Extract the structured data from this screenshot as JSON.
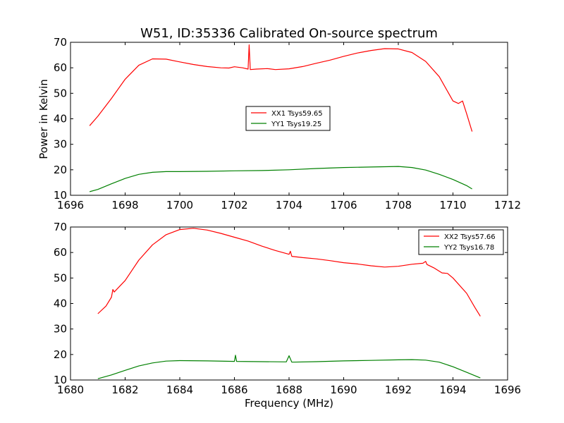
{
  "figure": {
    "title": "W51, ID:35336 Calibrated On-source spectrum",
    "ylabel": "Power in Kelvin",
    "xlabel": "Frequency (MHz)"
  },
  "chart_data": [
    {
      "type": "line",
      "xlim": [
        1696,
        1712
      ],
      "ylim": [
        10,
        70
      ],
      "xticks": [
        1696,
        1698,
        1700,
        1702,
        1704,
        1706,
        1708,
        1710,
        1712
      ],
      "yticks": [
        10,
        20,
        30,
        40,
        50,
        60,
        70
      ],
      "grid": false,
      "legend_position": "center",
      "series": [
        {
          "name": "XX1 Tsys59.65",
          "color": "#ff0000",
          "points": [
            [
              1696.7,
              37.3
            ],
            [
              1697.0,
              41.0
            ],
            [
              1697.5,
              48.0
            ],
            [
              1698.0,
              55.5
            ],
            [
              1698.5,
              61.0
            ],
            [
              1699.0,
              63.5
            ],
            [
              1699.5,
              63.4
            ],
            [
              1700.0,
              62.3
            ],
            [
              1700.5,
              61.3
            ],
            [
              1701.0,
              60.5
            ],
            [
              1701.5,
              60.0
            ],
            [
              1701.8,
              59.9
            ],
            [
              1702.0,
              60.4
            ],
            [
              1702.3,
              60.0
            ],
            [
              1702.5,
              59.5
            ],
            [
              1702.54,
              69.0
            ],
            [
              1702.58,
              59.3
            ],
            [
              1702.8,
              59.5
            ],
            [
              1703.2,
              59.7
            ],
            [
              1703.5,
              59.3
            ],
            [
              1704.0,
              59.6
            ],
            [
              1704.5,
              60.5
            ],
            [
              1705.0,
              61.8
            ],
            [
              1705.5,
              63.0
            ],
            [
              1706.0,
              64.5
            ],
            [
              1706.5,
              65.8
            ],
            [
              1707.0,
              66.8
            ],
            [
              1707.5,
              67.5
            ],
            [
              1708.0,
              67.4
            ],
            [
              1708.5,
              66.0
            ],
            [
              1709.0,
              62.5
            ],
            [
              1709.5,
              56.5
            ],
            [
              1710.0,
              47.0
            ],
            [
              1710.2,
              46.0
            ],
            [
              1710.35,
              47.0
            ],
            [
              1710.5,
              42.0
            ],
            [
              1710.7,
              35.0
            ]
          ]
        },
        {
          "name": "YY1 Tsys19.25",
          "color": "#008000",
          "points": [
            [
              1696.7,
              11.4
            ],
            [
              1697.0,
              12.3
            ],
            [
              1697.5,
              14.5
            ],
            [
              1698.0,
              16.6
            ],
            [
              1698.5,
              18.2
            ],
            [
              1699.0,
              19.0
            ],
            [
              1699.5,
              19.3
            ],
            [
              1700.0,
              19.3
            ],
            [
              1701.0,
              19.4
            ],
            [
              1702.0,
              19.6
            ],
            [
              1703.0,
              19.7
            ],
            [
              1704.0,
              20.0
            ],
            [
              1705.0,
              20.5
            ],
            [
              1706.0,
              20.9
            ],
            [
              1707.0,
              21.1
            ],
            [
              1707.5,
              21.2
            ],
            [
              1708.0,
              21.3
            ],
            [
              1708.5,
              20.9
            ],
            [
              1709.0,
              19.9
            ],
            [
              1709.5,
              18.2
            ],
            [
              1710.0,
              16.2
            ],
            [
              1710.5,
              13.8
            ],
            [
              1710.7,
              12.5
            ]
          ]
        }
      ]
    },
    {
      "type": "line",
      "xlim": [
        1680,
        1696
      ],
      "ylim": [
        10,
        70
      ],
      "xticks": [
        1680,
        1682,
        1684,
        1686,
        1688,
        1690,
        1692,
        1694,
        1696
      ],
      "yticks": [
        10,
        20,
        30,
        40,
        50,
        60,
        70
      ],
      "grid": false,
      "legend_position": "top-right",
      "series": [
        {
          "name": "XX2 Tsys57.66",
          "color": "#ff0000",
          "points": [
            [
              1681.0,
              36.0
            ],
            [
              1681.3,
              39.0
            ],
            [
              1681.5,
              42.5
            ],
            [
              1681.55,
              45.5
            ],
            [
              1681.6,
              44.5
            ],
            [
              1682.0,
              49.0
            ],
            [
              1682.5,
              57.0
            ],
            [
              1683.0,
              63.0
            ],
            [
              1683.5,
              67.0
            ],
            [
              1684.0,
              69.0
            ],
            [
              1684.5,
              69.5
            ],
            [
              1685.0,
              68.8
            ],
            [
              1685.5,
              67.5
            ],
            [
              1686.0,
              66.0
            ],
            [
              1686.5,
              64.5
            ],
            [
              1687.0,
              62.5
            ],
            [
              1687.5,
              60.8
            ],
            [
              1688.0,
              59.3
            ],
            [
              1688.05,
              60.5
            ],
            [
              1688.1,
              58.5
            ],
            [
              1688.5,
              58.0
            ],
            [
              1689.0,
              57.5
            ],
            [
              1689.5,
              56.8
            ],
            [
              1690.0,
              56.0
            ],
            [
              1690.5,
              55.5
            ],
            [
              1691.0,
              54.8
            ],
            [
              1691.5,
              54.3
            ],
            [
              1692.0,
              54.6
            ],
            [
              1692.5,
              55.4
            ],
            [
              1692.9,
              55.8
            ],
            [
              1693.0,
              56.5
            ],
            [
              1693.05,
              55.3
            ],
            [
              1693.3,
              54.0
            ],
            [
              1693.6,
              52.0
            ],
            [
              1693.8,
              51.8
            ],
            [
              1694.0,
              50.0
            ],
            [
              1694.5,
              44.0
            ],
            [
              1694.8,
              38.5
            ],
            [
              1695.0,
              35.0
            ]
          ]
        },
        {
          "name": "YY2 Tsys16.78",
          "color": "#008000",
          "points": [
            [
              1681.0,
              10.5
            ],
            [
              1681.5,
              12.0
            ],
            [
              1682.0,
              13.8
            ],
            [
              1682.5,
              15.5
            ],
            [
              1683.0,
              16.7
            ],
            [
              1683.5,
              17.4
            ],
            [
              1684.0,
              17.6
            ],
            [
              1685.0,
              17.5
            ],
            [
              1686.0,
              17.3
            ],
            [
              1686.04,
              19.7
            ],
            [
              1686.08,
              17.3
            ],
            [
              1687.0,
              17.2
            ],
            [
              1687.9,
              17.1
            ],
            [
              1688.0,
              19.5
            ],
            [
              1688.1,
              17.0
            ],
            [
              1689.0,
              17.2
            ],
            [
              1690.0,
              17.5
            ],
            [
              1691.0,
              17.7
            ],
            [
              1692.0,
              17.9
            ],
            [
              1692.5,
              18.0
            ],
            [
              1693.0,
              17.8
            ],
            [
              1693.5,
              17.0
            ],
            [
              1694.0,
              15.2
            ],
            [
              1694.5,
              13.0
            ],
            [
              1695.0,
              10.8
            ]
          ]
        }
      ]
    }
  ]
}
